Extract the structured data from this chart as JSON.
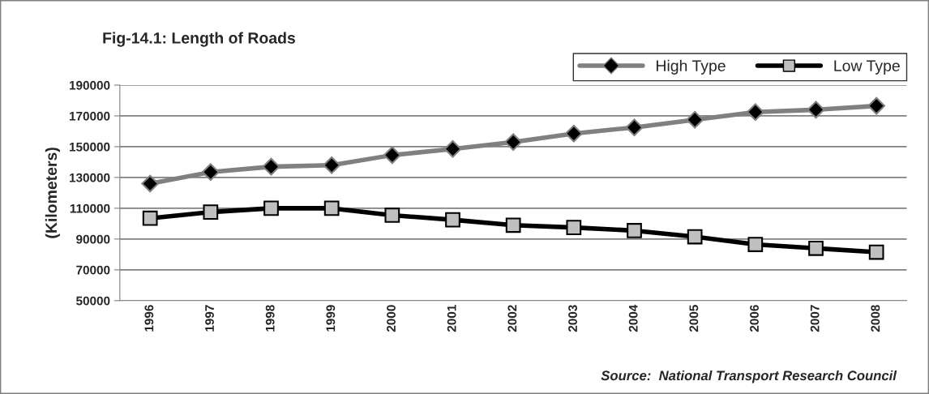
{
  "chart_data": {
    "type": "line",
    "title": "Fig-14.1: Length of Roads",
    "ylabel": "(Kilometers)",
    "categories": [
      "1996",
      "1997",
      "1998",
      "1999",
      "2000",
      "2001",
      "2002",
      "2003",
      "2004",
      "2005",
      "2006",
      "2007",
      "2008"
    ],
    "series": [
      {
        "name": "High Type",
        "color": "#808080",
        "marker": "diamond",
        "values": [
          126000,
          133500,
          137000,
          138000,
          144500,
          148500,
          153000,
          158500,
          162500,
          167500,
          172500,
          174000,
          176500
        ]
      },
      {
        "name": "Low Type",
        "color": "#000000",
        "marker": "square",
        "values": [
          103500,
          107500,
          110000,
          110000,
          105500,
          102500,
          99000,
          97500,
          95500,
          91500,
          86500,
          84000,
          81500
        ]
      }
    ],
    "ylim": [
      50000,
      190000
    ],
    "yticks": [
      50000,
      70000,
      90000,
      110000,
      130000,
      150000,
      170000,
      190000
    ],
    "grid": "y",
    "legend": "top right",
    "line_style": "solid",
    "annotations": [
      "Source:  National Transport Research Council"
    ]
  }
}
